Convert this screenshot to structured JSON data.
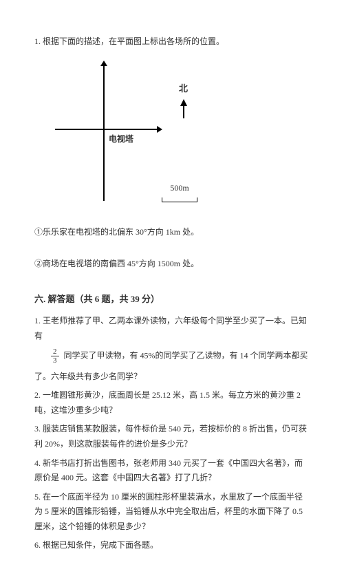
{
  "intro": "1. 根据下面的描述，在平面图上标出各场所的位置。",
  "diagram": {
    "north_label": "北",
    "tower_label": "电视塔",
    "scale_label": "500m"
  },
  "subq1": "①乐乐家在电视塔的北偏东 30°方向 1km 处。",
  "subq2": "②商场在电视塔的南偏西 45°方向 1500m 处。",
  "section_title": "六. 解答题（共 6 题，共 39 分）",
  "q1_line1": "1. 王老师推荐了甲、乙两本课外读物，六年级每个同学至少买了一本。已知有",
  "q1_frac_num": "2",
  "q1_frac_den": "3",
  "q1_line2": "同学买了甲读物，有 45%的同学买了乙读物，有 14 个同学两本都买",
  "q1_line3": "了。六年级共有多少名同学？",
  "q2": "2. 一堆圆锥形黄沙，底面周长是 25.12 米，高 1.5 米。每立方米的黄沙重 2 吨，这堆沙重多少吨？",
  "q3": "3. 服装店销售某款服装，每件标价是 540 元，若按标价的 8 折出售，仍可获利 20%，则这款服装每件的进价是多少元？",
  "q4": "4. 新华书店打折出售图书，张老师用 340 元买了一套《中国四大名著》，而原价是 400 元。这套《中国四大名著》打了几折？",
  "q5": "5. 在一个底面半径为 10 厘米的圆柱形杯里装满水，水里放了一个底面半径为 5 厘米的圆锥形铅锤，当铅锤从水中完全取出后，杯里的水面下降了 0.5 厘米，这个铅锤的体积是多少？",
  "q6": "6. 根据已知条件，完成下面各题。"
}
